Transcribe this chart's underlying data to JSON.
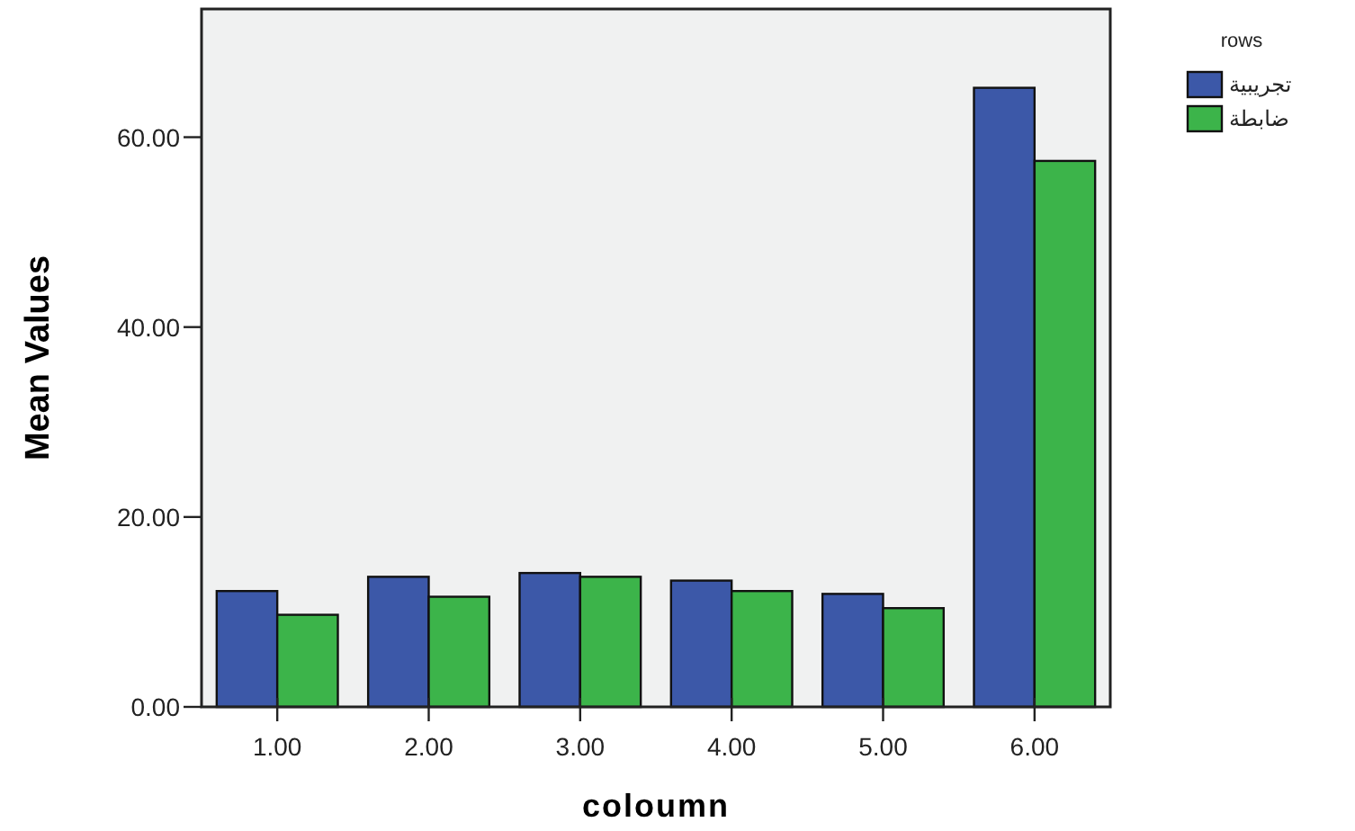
{
  "chart_data": {
    "type": "bar",
    "xlabel": "coloumn",
    "ylabel": "Mean Values",
    "legend_title": "rows",
    "legend": "top right",
    "categories": [
      "1.00",
      "2.00",
      "3.00",
      "4.00",
      "5.00",
      "6.00"
    ],
    "series": [
      {
        "name": "تجريبية",
        "color": "#3c58a8",
        "values": [
          12.2,
          13.7,
          14.1,
          13.3,
          11.9,
          65.2
        ]
      },
      {
        "name": "ضابطة",
        "color": "#3cb44a",
        "values": [
          9.7,
          11.6,
          13.7,
          12.2,
          10.4,
          57.5
        ]
      }
    ],
    "ylim": [
      0,
      73.5
    ],
    "yticks": [
      {
        "value": 0,
        "label": "0.00"
      },
      {
        "value": 20,
        "label": "20.00"
      },
      {
        "value": 40,
        "label": "40.00"
      },
      {
        "value": 60,
        "label": "60.00"
      }
    ]
  }
}
